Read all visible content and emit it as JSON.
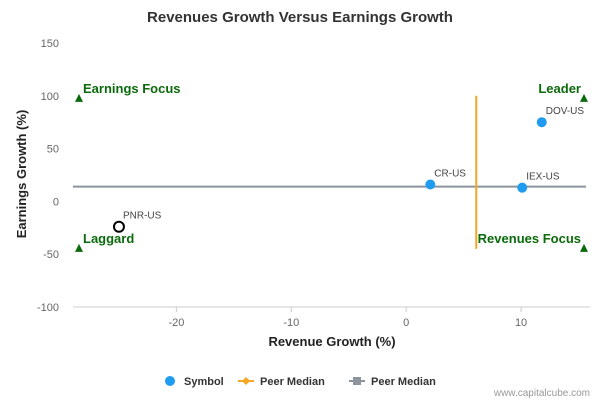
{
  "chart_data": {
    "type": "scatter",
    "title": "Revenues Growth Versus Earnings Growth",
    "xlabel": "Revenue Growth (%)",
    "ylabel": "Earnings Growth (%)",
    "xlim": [
      -29,
      16
    ],
    "ylim": [
      -100,
      150
    ],
    "xticks": [
      -20,
      -10,
      0,
      10
    ],
    "yticks": [
      -100,
      -50,
      0,
      50,
      100,
      150
    ],
    "grid": false,
    "points": [
      {
        "label": "CR-US",
        "x": 2.1,
        "y": 16,
        "style": "filled"
      },
      {
        "label": "IEX-US",
        "x": 10.1,
        "y": 13,
        "style": "filled"
      },
      {
        "label": "DOV-US",
        "x": 11.8,
        "y": 75,
        "style": "filled"
      },
      {
        "label": "PNR-US",
        "x": -25,
        "y": -24,
        "style": "hollow"
      }
    ],
    "peer_median_x": 6.1,
    "peer_median_y": 14,
    "peer_median_x_range": [
      -45,
      100
    ],
    "quadrant_labels": [
      {
        "text": "Earnings Focus",
        "x": -29,
        "y": 98,
        "anchor": "start"
      },
      {
        "text": "Leader",
        "x": 16,
        "y": 98,
        "anchor": "end"
      },
      {
        "text": "Laggard",
        "x": -29,
        "y": -44,
        "anchor": "start"
      },
      {
        "text": "Revenues Focus",
        "x": 16,
        "y": -44,
        "anchor": "end"
      }
    ],
    "legend": {
      "position": "bottom",
      "items": [
        {
          "label": "Symbol",
          "marker": "circle",
          "color": "#1f9cf0"
        },
        {
          "label": "Peer Median",
          "marker": "diamond-line",
          "color": "#f5a623"
        },
        {
          "label": "Peer Median",
          "marker": "square-line",
          "color": "#8c959e"
        }
      ]
    }
  },
  "colors": {
    "point": "#1f9cf0",
    "median_v": "#f5a623",
    "median_h": "#8c959e",
    "quadrant": "#0b6a0b",
    "text": "#333333",
    "muted": "#666666"
  },
  "watermark": "www.capitalcube.com"
}
